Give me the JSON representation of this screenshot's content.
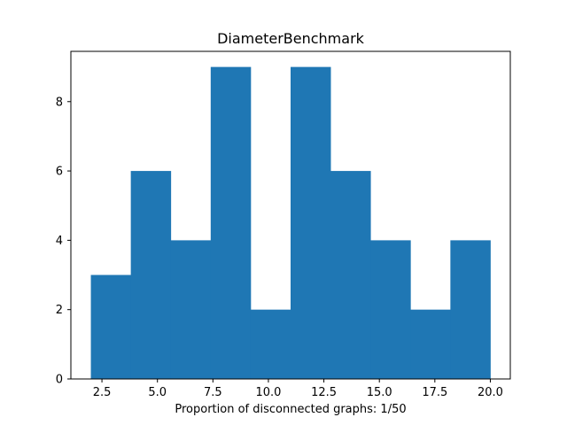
{
  "chart_data": {
    "type": "bar",
    "title": "DiameterBenchmark",
    "xlabel": "Proportion of disconnected graphs: 1/50",
    "ylabel": "",
    "bin_edges": [
      2.0,
      3.8,
      5.6,
      7.4,
      9.2,
      11.0,
      12.8,
      14.6,
      16.4,
      18.2,
      20.0
    ],
    "values": [
      3,
      6,
      4,
      9,
      2,
      9,
      6,
      4,
      2,
      4
    ],
    "xlim": [
      1.1,
      20.9
    ],
    "ylim": [
      0,
      9.45
    ],
    "xticks": [
      2.5,
      5.0,
      7.5,
      10.0,
      12.5,
      15.0,
      17.5,
      20.0
    ],
    "xtick_labels": [
      "2.5",
      "5.0",
      "7.5",
      "10.0",
      "12.5",
      "15.0",
      "17.5",
      "20.0"
    ],
    "yticks": [
      0,
      2,
      4,
      6,
      8
    ],
    "ytick_labels": [
      "0",
      "2",
      "4",
      "6",
      "8"
    ],
    "bar_color": "#1f77b4",
    "grid": false,
    "legend": "none"
  }
}
